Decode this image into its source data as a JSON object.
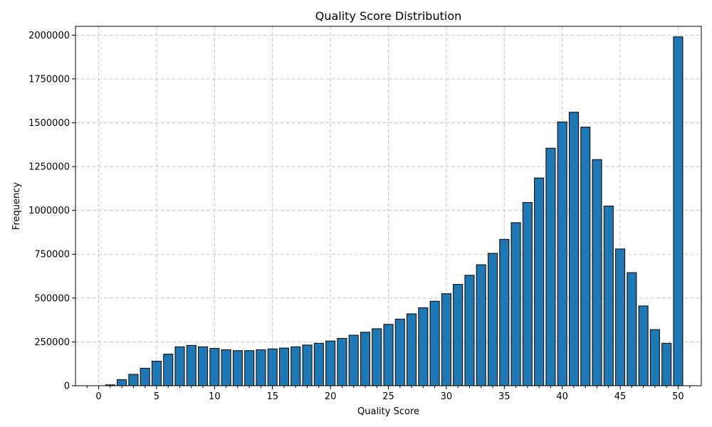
{
  "chart_data": {
    "type": "bar",
    "title": "Quality Score Distribution",
    "xlabel": "Quality Score",
    "ylabel": "Frequency",
    "x": [
      0,
      1,
      2,
      3,
      4,
      5,
      6,
      7,
      8,
      9,
      10,
      11,
      12,
      13,
      14,
      15,
      16,
      17,
      18,
      19,
      20,
      21,
      22,
      23,
      24,
      25,
      26,
      27,
      28,
      29,
      30,
      31,
      32,
      33,
      34,
      35,
      36,
      37,
      38,
      39,
      40,
      41,
      42,
      43,
      44,
      45,
      46,
      47,
      48,
      49,
      50
    ],
    "values": [
      0,
      5000,
      35000,
      65000,
      100000,
      140000,
      180000,
      222000,
      230000,
      222000,
      213000,
      205000,
      200000,
      200000,
      205000,
      210000,
      215000,
      222000,
      232000,
      242000,
      255000,
      270000,
      288000,
      305000,
      325000,
      350000,
      380000,
      410000,
      445000,
      482000,
      525000,
      578000,
      630000,
      690000,
      755000,
      835000,
      930000,
      1045000,
      1185000,
      1355000,
      1505000,
      1560000,
      1475000,
      1290000,
      1025000,
      780000,
      645000,
      455000,
      320000,
      242000,
      1990000
    ],
    "xlim": [
      -2,
      52
    ],
    "ylim": [
      0,
      2050000
    ],
    "xticks": [
      "0",
      "5",
      "10",
      "15",
      "20",
      "25",
      "30",
      "35",
      "40",
      "45",
      "50"
    ],
    "xtick_values": [
      0,
      5,
      10,
      15,
      20,
      25,
      30,
      35,
      40,
      45,
      50
    ],
    "yticks": [
      "0",
      "250000",
      "500000",
      "750000",
      "1000000",
      "1250000",
      "1500000",
      "1750000",
      "2000000"
    ],
    "ytick_values": [
      0,
      250000,
      500000,
      750000,
      1000000,
      1250000,
      1500000,
      1750000,
      2000000
    ],
    "grid": true,
    "bar_color": "#1f77b4",
    "bar_edge_color": "#000000",
    "grid_color": "#c8c8c8"
  }
}
